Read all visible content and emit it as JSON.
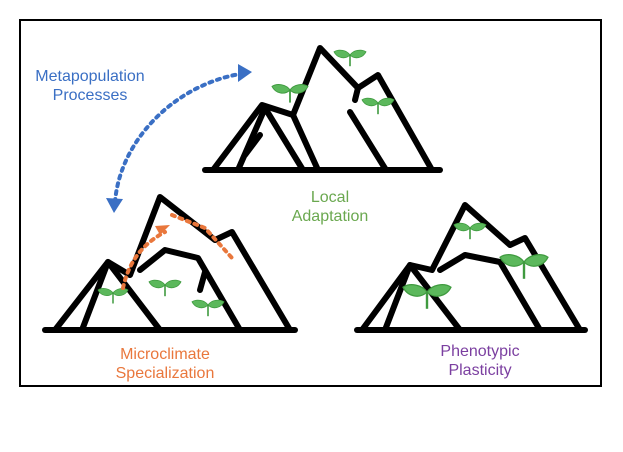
{
  "labels": {
    "metapopulation": {
      "line1": "Metapopulation",
      "line2": "Processes",
      "color": "#3a6fc4"
    },
    "local_adaptation": {
      "line1": "Local",
      "line2": "Adaptation",
      "color": "#6aa84f"
    },
    "microclimate": {
      "line1": "Microclimate",
      "line2": "Specialization",
      "color": "#e9773c"
    },
    "plasticity": {
      "line1": "Phenotypic",
      "line2": "Plasticity",
      "color": "#7b3fa0"
    }
  },
  "colors": {
    "mountain_outline": "#000000",
    "leaf": "#5cb85c",
    "leaf_dark": "#3f9a3f",
    "metapopulation_arrow": "#3a6fc4",
    "microclimate_arrow": "#e9773c"
  }
}
